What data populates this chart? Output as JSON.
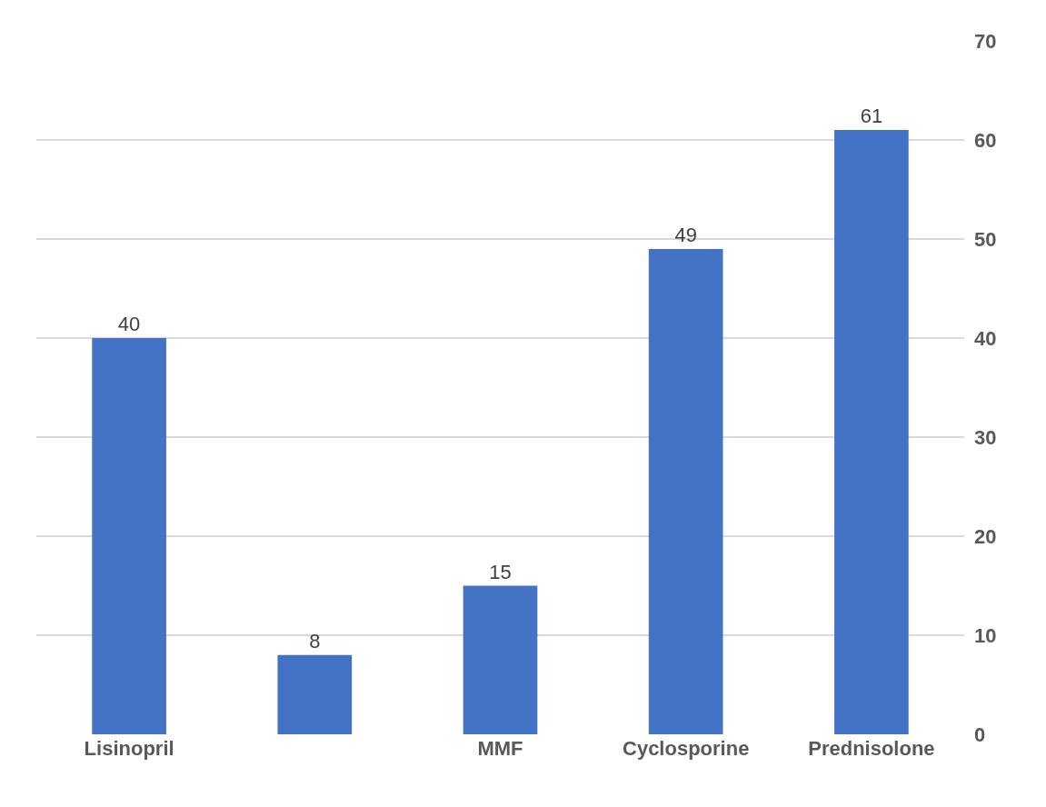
{
  "chart_data": {
    "type": "bar",
    "categories": [
      "Lisinopril",
      null,
      "MMF",
      "Cyclosporine",
      "Prednisolone"
    ],
    "values": [
      40,
      8,
      15,
      49,
      61
    ],
    "color": "#4472c4",
    "ylim": [
      0,
      70
    ],
    "yticks": [
      0,
      10,
      20,
      30,
      40,
      50,
      60,
      70
    ],
    "grid": true,
    "data_labels": true
  }
}
